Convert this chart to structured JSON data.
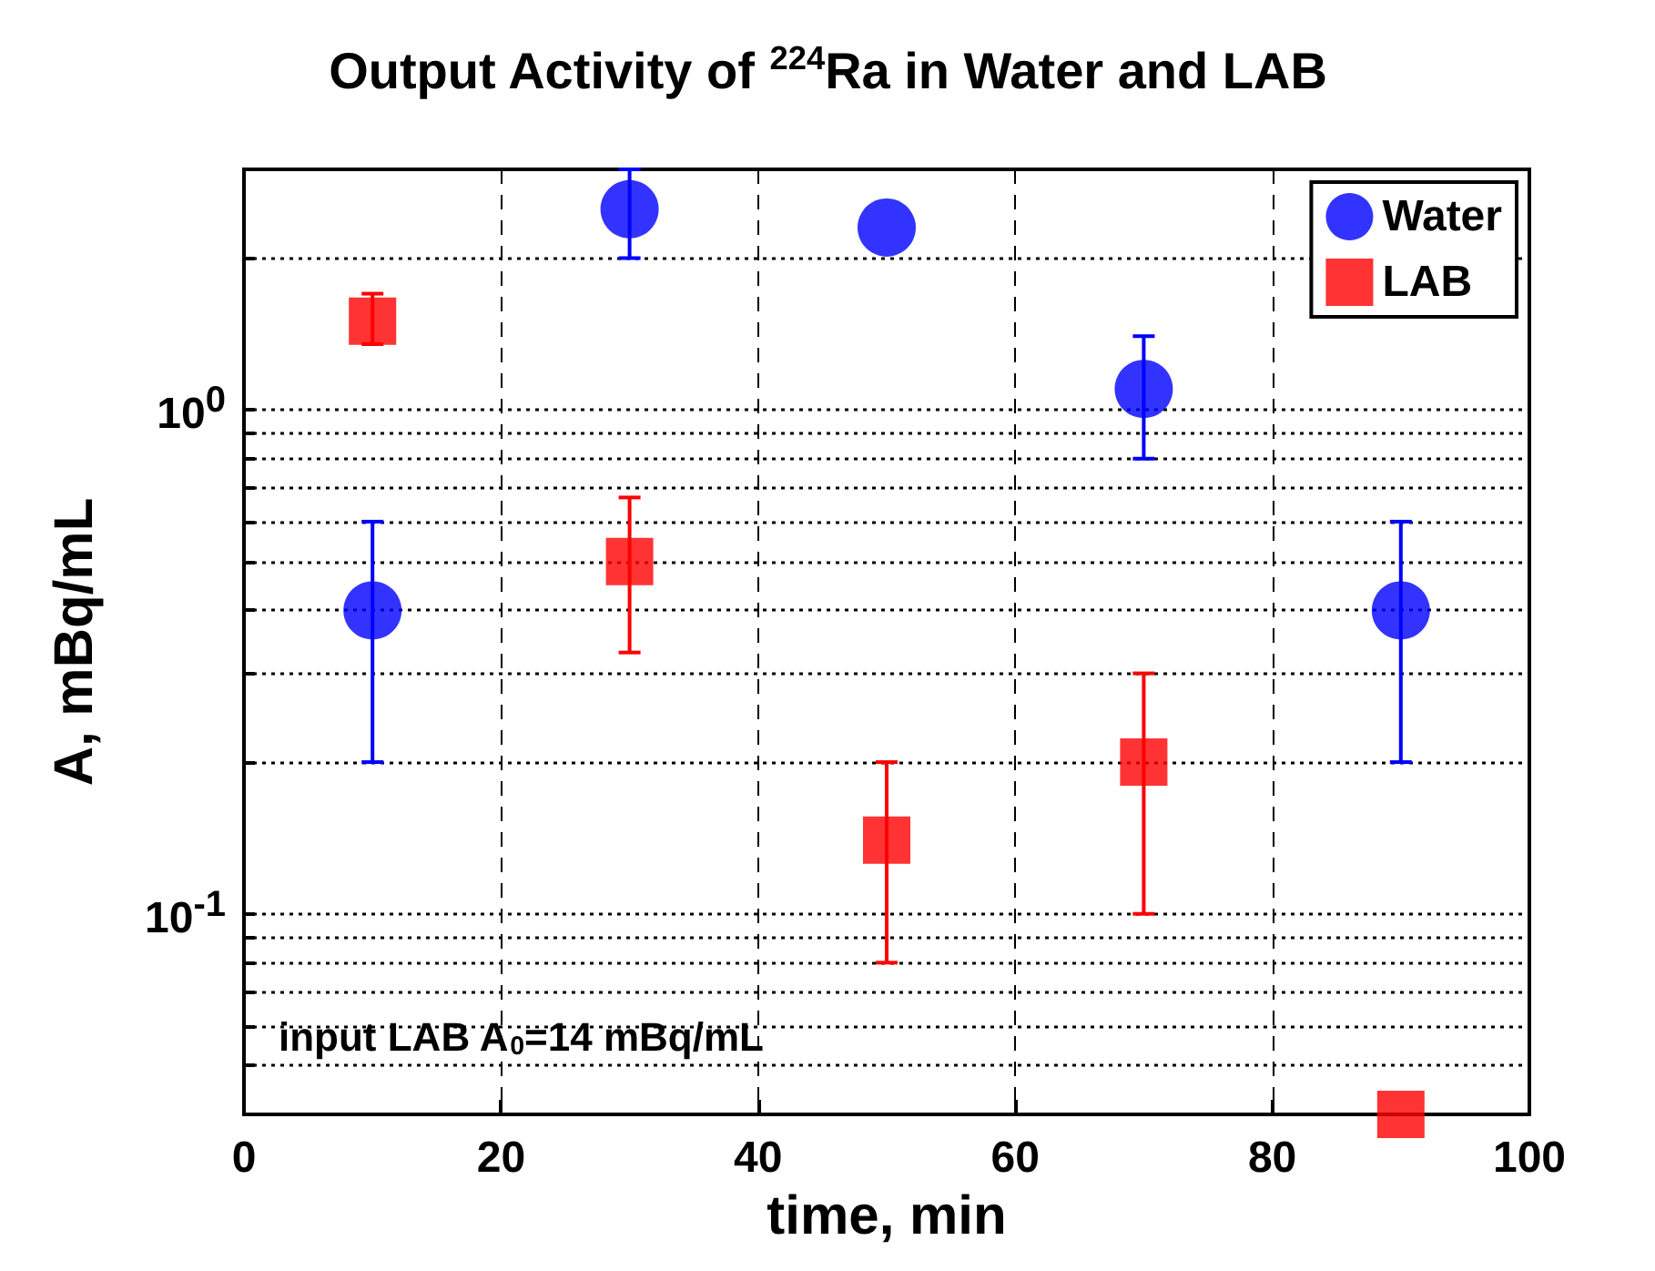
{
  "chart_data": {
    "type": "scatter",
    "title": "Output Activity of $^{224}$Ra in Water and LAB",
    "xlabel": "time, min",
    "ylabel": "A, mBq/mL",
    "annotations": [
      "input LAB A$_{0}$=14 mBq/mL"
    ],
    "x": [
      10,
      30,
      50,
      70,
      90
    ],
    "series": [
      {
        "name": "Water",
        "color": "#0000ff",
        "marker": "circle",
        "values": [
          0.4,
          2.5,
          2.3,
          1.1,
          0.4
        ],
        "errors": [
          [
            0.2,
            0.6
          ],
          [
            2,
            3
          ],
          null,
          [
            0.8,
            1.4
          ],
          [
            0.2,
            0.6
          ]
        ]
      },
      {
        "name": "LAB",
        "color": "#ff0000",
        "marker": "square",
        "values": [
          1.5,
          0.5,
          0.14,
          0.2,
          0.04
        ],
        "errors": [
          [
            1.35,
            1.7
          ],
          [
            0.33,
            0.67
          ],
          [
            0.08,
            0.2
          ],
          [
            0.1,
            0.3
          ],
          null
        ]
      }
    ],
    "xlim": [
      0,
      100
    ],
    "xticks": [
      0,
      20,
      40,
      60,
      80,
      100
    ],
    "ylim": [
      0.04,
      3
    ],
    "log": "y",
    "yticks": [
      {
        "value": 0.05,
        "label": null
      },
      {
        "value": 0.06,
        "label": null
      },
      {
        "value": 0.07,
        "label": null
      },
      {
        "value": 0.08,
        "label": null
      },
      {
        "value": 0.09,
        "label": null
      },
      {
        "value": 0.1,
        "label": "10$^{-1}$"
      },
      {
        "value": 0.2,
        "label": null
      },
      {
        "value": 0.3,
        "label": null
      },
      {
        "value": 0.4,
        "label": null
      },
      {
        "value": 0.5,
        "label": null
      },
      {
        "value": 0.6,
        "label": null
      },
      {
        "value": 0.7,
        "label": null
      },
      {
        "value": 0.8,
        "label": null
      },
      {
        "value": 0.9,
        "label": null
      },
      {
        "value": 1,
        "label": "10$^{0}$"
      },
      {
        "value": 2,
        "label": null
      }
    ],
    "grid": true,
    "legend": "top right"
  }
}
